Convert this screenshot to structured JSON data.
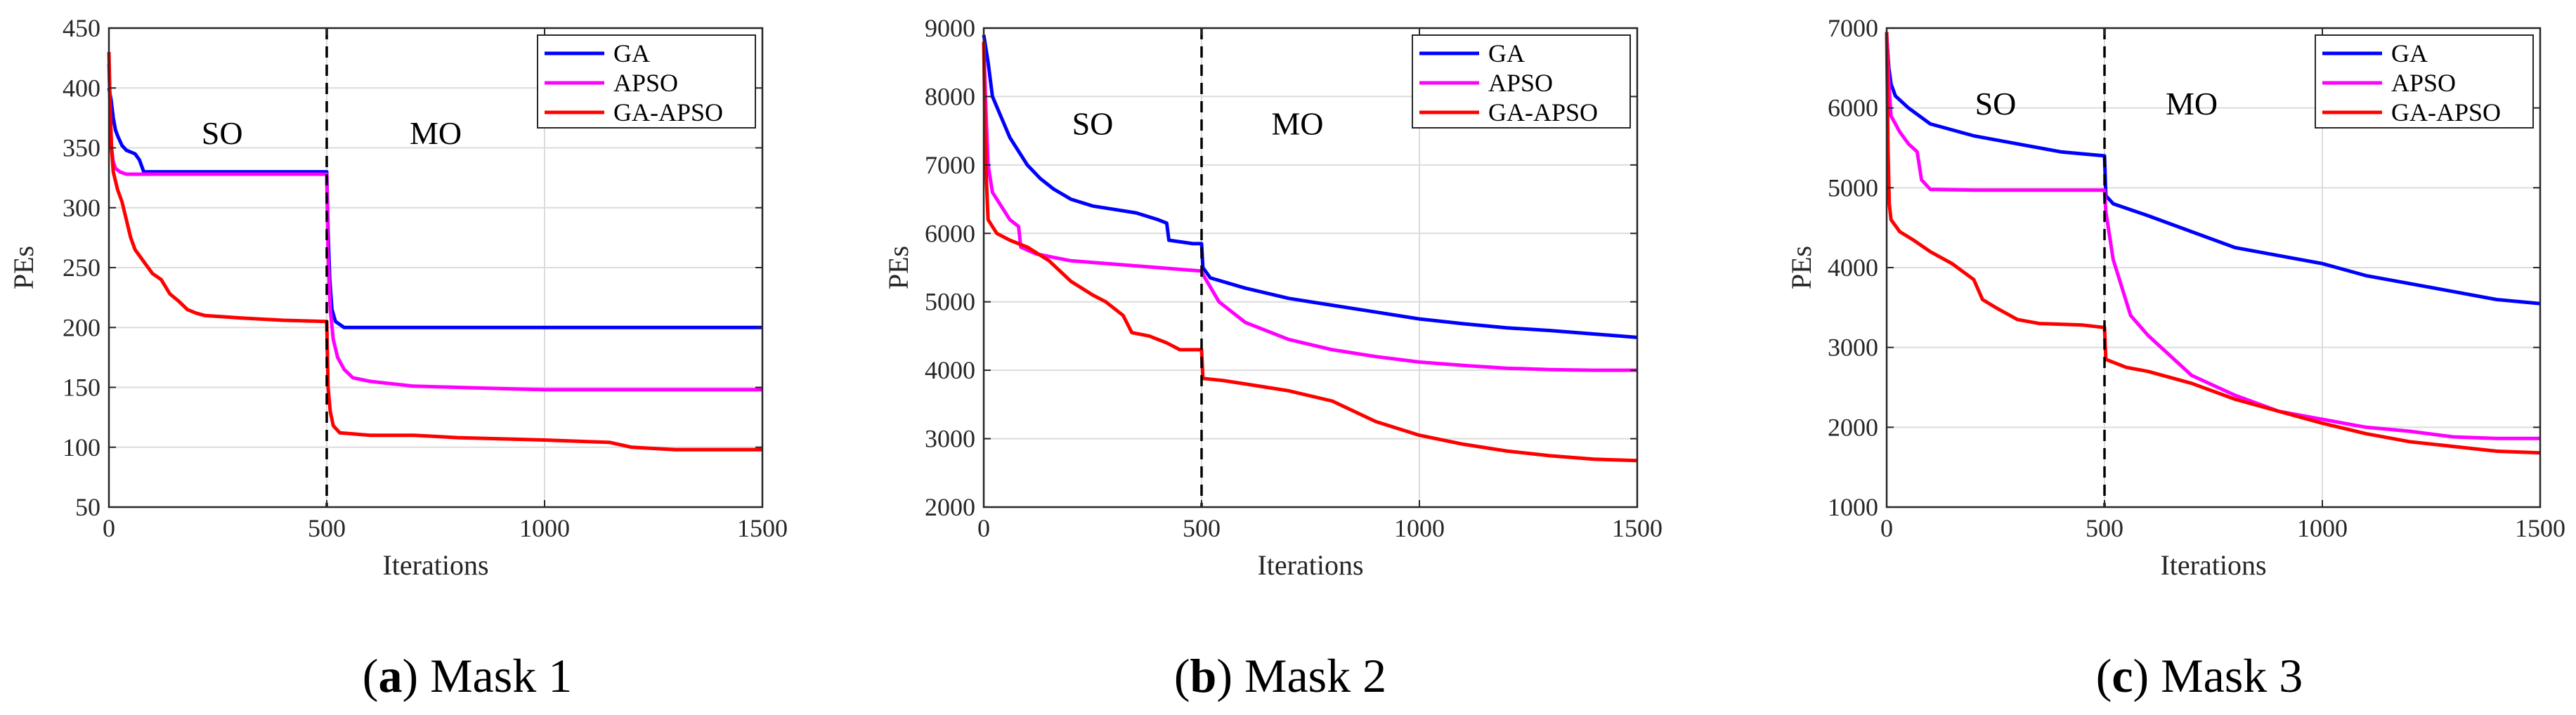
{
  "chart_data": [
    {
      "type": "line",
      "caption_letter": "a",
      "caption_text": "Mask 1",
      "caption_open": "(",
      "caption_close": ") ",
      "xlabel": "Iterations",
      "ylabel": "PEs",
      "xlim": [
        0,
        1500
      ],
      "ylim": [
        50,
        450
      ],
      "xticks": [
        0,
        500,
        1000,
        1500
      ],
      "yticks": [
        50,
        100,
        150,
        200,
        250,
        300,
        350,
        400,
        450
      ],
      "grid": true,
      "legend_position": "top-right",
      "divider_x": 500,
      "region_labels": [
        {
          "text": "SO",
          "x": 260
        },
        {
          "text": "MO",
          "x": 750
        }
      ],
      "region_label_y": 362,
      "series": [
        {
          "name": "GA",
          "color": "#0000ff",
          "points": [
            [
              0,
              400
            ],
            [
              5,
              390
            ],
            [
              10,
              375
            ],
            [
              15,
              365
            ],
            [
              20,
              360
            ],
            [
              30,
              352
            ],
            [
              40,
              348
            ],
            [
              60,
              345
            ],
            [
              70,
              340
            ],
            [
              80,
              330
            ],
            [
              200,
              330
            ],
            [
              400,
              330
            ],
            [
              500,
              330
            ],
            [
              503,
              280
            ],
            [
              507,
              240
            ],
            [
              512,
              215
            ],
            [
              520,
              205
            ],
            [
              540,
              200
            ],
            [
              600,
              200
            ],
            [
              800,
              200
            ],
            [
              1000,
              200
            ],
            [
              1200,
              200
            ],
            [
              1500,
              200
            ]
          ]
        },
        {
          "name": "APSO",
          "color": "#ff00ff",
          "points": [
            [
              0,
              420
            ],
            [
              3,
              380
            ],
            [
              6,
              350
            ],
            [
              10,
              338
            ],
            [
              15,
              333
            ],
            [
              25,
              330
            ],
            [
              40,
              328
            ],
            [
              100,
              328
            ],
            [
              300,
              328
            ],
            [
              500,
              328
            ],
            [
              503,
              260
            ],
            [
              508,
              215
            ],
            [
              515,
              190
            ],
            [
              525,
              175
            ],
            [
              540,
              165
            ],
            [
              560,
              158
            ],
            [
              600,
              155
            ],
            [
              700,
              151
            ],
            [
              800,
              150
            ],
            [
              900,
              149
            ],
            [
              1000,
              148
            ],
            [
              1200,
              148
            ],
            [
              1400,
              148
            ],
            [
              1500,
              148
            ]
          ]
        },
        {
          "name": "GA-APSO",
          "color": "#ff0000",
          "points": [
            [
              0,
              430
            ],
            [
              3,
              380
            ],
            [
              6,
              350
            ],
            [
              10,
              330
            ],
            [
              20,
              315
            ],
            [
              30,
              305
            ],
            [
              40,
              290
            ],
            [
              50,
              275
            ],
            [
              60,
              265
            ],
            [
              80,
              255
            ],
            [
              100,
              245
            ],
            [
              120,
              240
            ],
            [
              140,
              228
            ],
            [
              160,
              222
            ],
            [
              180,
              215
            ],
            [
              200,
              212
            ],
            [
              220,
              210
            ],
            [
              260,
              209
            ],
            [
              300,
              208
            ],
            [
              400,
              206
            ],
            [
              500,
              205
            ],
            [
              503,
              150
            ],
            [
              508,
              130
            ],
            [
              515,
              118
            ],
            [
              530,
              112
            ],
            [
              600,
              110
            ],
            [
              700,
              110
            ],
            [
              800,
              108
            ],
            [
              1000,
              106
            ],
            [
              1150,
              104
            ],
            [
              1200,
              100
            ],
            [
              1250,
              99
            ],
            [
              1300,
              98
            ],
            [
              1400,
              98
            ],
            [
              1500,
              98
            ]
          ]
        }
      ]
    },
    {
      "type": "line",
      "caption_letter": "b",
      "caption_text": "Mask 2",
      "caption_open": "(",
      "caption_close": ") ",
      "xlabel": "Iterations",
      "ylabel": "PEs",
      "xlim": [
        0,
        1500
      ],
      "ylim": [
        2000,
        9000
      ],
      "xticks": [
        0,
        500,
        1000,
        1500
      ],
      "yticks": [
        2000,
        3000,
        4000,
        5000,
        6000,
        7000,
        8000,
        9000
      ],
      "grid": true,
      "legend_position": "top-right",
      "divider_x": 500,
      "region_labels": [
        {
          "text": "SO",
          "x": 250
        },
        {
          "text": "MO",
          "x": 720
        }
      ],
      "region_label_y": 7600,
      "series": [
        {
          "name": "GA",
          "color": "#0000ff",
          "points": [
            [
              0,
              8900
            ],
            [
              10,
              8500
            ],
            [
              20,
              8000
            ],
            [
              40,
              7700
            ],
            [
              60,
              7400
            ],
            [
              80,
              7200
            ],
            [
              100,
              7000
            ],
            [
              130,
              6800
            ],
            [
              160,
              6650
            ],
            [
              200,
              6500
            ],
            [
              250,
              6400
            ],
            [
              300,
              6350
            ],
            [
              350,
              6300
            ],
            [
              400,
              6200
            ],
            [
              420,
              6150
            ],
            [
              425,
              5900
            ],
            [
              480,
              5850
            ],
            [
              500,
              5850
            ],
            [
              503,
              5500
            ],
            [
              520,
              5350
            ],
            [
              600,
              5200
            ],
            [
              700,
              5050
            ],
            [
              800,
              4950
            ],
            [
              900,
              4850
            ],
            [
              1000,
              4750
            ],
            [
              1100,
              4680
            ],
            [
              1200,
              4620
            ],
            [
              1300,
              4580
            ],
            [
              1400,
              4530
            ],
            [
              1500,
              4480
            ]
          ]
        },
        {
          "name": "APSO",
          "color": "#ff00ff",
          "points": [
            [
              0,
              8800
            ],
            [
              5,
              7800
            ],
            [
              10,
              7000
            ],
            [
              20,
              6600
            ],
            [
              40,
              6400
            ],
            [
              60,
              6200
            ],
            [
              80,
              6100
            ],
            [
              85,
              5800
            ],
            [
              120,
              5700
            ],
            [
              200,
              5600
            ],
            [
              300,
              5550
            ],
            [
              400,
              5500
            ],
            [
              500,
              5450
            ],
            [
              503,
              5400
            ],
            [
              540,
              5000
            ],
            [
              600,
              4700
            ],
            [
              700,
              4450
            ],
            [
              800,
              4300
            ],
            [
              900,
              4200
            ],
            [
              1000,
              4120
            ],
            [
              1100,
              4070
            ],
            [
              1200,
              4030
            ],
            [
              1300,
              4010
            ],
            [
              1400,
              4000
            ],
            [
              1500,
              4000
            ]
          ]
        },
        {
          "name": "GA-APSO",
          "color": "#ff0000",
          "points": [
            [
              0,
              8800
            ],
            [
              3,
              7500
            ],
            [
              6,
              6800
            ],
            [
              10,
              6200
            ],
            [
              30,
              6000
            ],
            [
              60,
              5900
            ],
            [
              100,
              5800
            ],
            [
              150,
              5600
            ],
            [
              200,
              5300
            ],
            [
              250,
              5100
            ],
            [
              280,
              5000
            ],
            [
              320,
              4800
            ],
            [
              340,
              4550
            ],
            [
              380,
              4500
            ],
            [
              420,
              4400
            ],
            [
              450,
              4300
            ],
            [
              500,
              4300
            ],
            [
              503,
              3880
            ],
            [
              550,
              3850
            ],
            [
              600,
              3800
            ],
            [
              700,
              3700
            ],
            [
              800,
              3550
            ],
            [
              900,
              3250
            ],
            [
              1000,
              3050
            ],
            [
              1100,
              2920
            ],
            [
              1200,
              2820
            ],
            [
              1300,
              2750
            ],
            [
              1400,
              2700
            ],
            [
              1500,
              2680
            ]
          ]
        }
      ]
    },
    {
      "type": "line",
      "caption_letter": "c",
      "caption_text": "Mask 3",
      "caption_open": "(",
      "caption_close": ") ",
      "xlabel": "Iterations",
      "ylabel": "PEs",
      "xlim": [
        0,
        1500
      ],
      "ylim": [
        1000,
        7000
      ],
      "xticks": [
        0,
        500,
        1000,
        1500
      ],
      "yticks": [
        1000,
        2000,
        3000,
        4000,
        5000,
        6000,
        7000
      ],
      "grid": true,
      "legend_position": "top-right",
      "divider_x": 500,
      "region_labels": [
        {
          "text": "SO",
          "x": 250
        },
        {
          "text": "MO",
          "x": 700
        }
      ],
      "region_label_y": 6050,
      "series": [
        {
          "name": "GA",
          "color": "#0000ff",
          "points": [
            [
              0,
              6900
            ],
            [
              5,
              6500
            ],
            [
              10,
              6300
            ],
            [
              20,
              6150
            ],
            [
              50,
              6000
            ],
            [
              100,
              5800
            ],
            [
              200,
              5650
            ],
            [
              300,
              5550
            ],
            [
              400,
              5450
            ],
            [
              500,
              5400
            ],
            [
              503,
              4900
            ],
            [
              520,
              4800
            ],
            [
              600,
              4650
            ],
            [
              700,
              4450
            ],
            [
              800,
              4250
            ],
            [
              900,
              4150
            ],
            [
              1000,
              4050
            ],
            [
              1100,
              3900
            ],
            [
              1200,
              3800
            ],
            [
              1300,
              3700
            ],
            [
              1400,
              3600
            ],
            [
              1500,
              3550
            ]
          ]
        },
        {
          "name": "APSO",
          "color": "#ff00ff",
          "points": [
            [
              0,
              6950
            ],
            [
              5,
              6300
            ],
            [
              10,
              5900
            ],
            [
              30,
              5700
            ],
            [
              50,
              5550
            ],
            [
              70,
              5450
            ],
            [
              80,
              5100
            ],
            [
              100,
              4980
            ],
            [
              200,
              4970
            ],
            [
              300,
              4970
            ],
            [
              400,
              4970
            ],
            [
              500,
              4970
            ],
            [
              503,
              4700
            ],
            [
              520,
              4100
            ],
            [
              560,
              3400
            ],
            [
              600,
              3150
            ],
            [
              700,
              2650
            ],
            [
              800,
              2400
            ],
            [
              900,
              2200
            ],
            [
              1000,
              2100
            ],
            [
              1100,
              2000
            ],
            [
              1200,
              1950
            ],
            [
              1300,
              1880
            ],
            [
              1400,
              1860
            ],
            [
              1500,
              1860
            ]
          ]
        },
        {
          "name": "GA-APSO",
          "color": "#ff0000",
          "points": [
            [
              0,
              6950
            ],
            [
              3,
              5500
            ],
            [
              6,
              4800
            ],
            [
              10,
              4600
            ],
            [
              30,
              4450
            ],
            [
              60,
              4350
            ],
            [
              100,
              4200
            ],
            [
              150,
              4050
            ],
            [
              200,
              3850
            ],
            [
              220,
              3600
            ],
            [
              250,
              3500
            ],
            [
              300,
              3350
            ],
            [
              350,
              3300
            ],
            [
              450,
              3280
            ],
            [
              500,
              3250
            ],
            [
              503,
              2850
            ],
            [
              550,
              2750
            ],
            [
              600,
              2700
            ],
            [
              700,
              2550
            ],
            [
              800,
              2350
            ],
            [
              900,
              2200
            ],
            [
              1000,
              2050
            ],
            [
              1100,
              1920
            ],
            [
              1200,
              1820
            ],
            [
              1300,
              1760
            ],
            [
              1400,
              1700
            ],
            [
              1500,
              1680
            ]
          ]
        }
      ]
    }
  ]
}
